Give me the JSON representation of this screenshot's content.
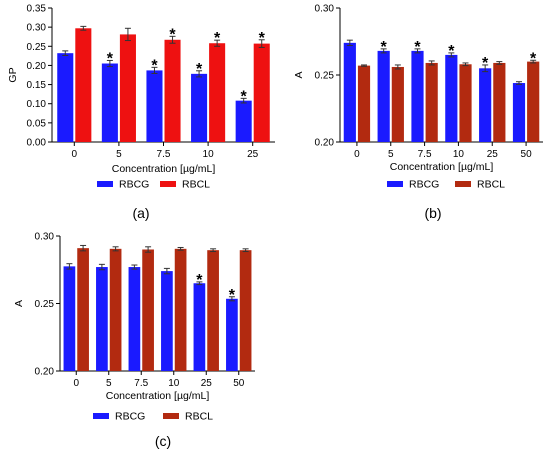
{
  "figure": {
    "panel_labels": [
      "(a)",
      "(b)",
      "(c)"
    ]
  },
  "chart_data": [
    {
      "type": "bar",
      "panel": "(a)",
      "categories": [
        "0",
        "5",
        "7.5",
        "10",
        "25"
      ],
      "series": [
        {
          "name": "RBCG",
          "color": "#1a1aff",
          "values": [
            0.232,
            0.205,
            0.187,
            0.178,
            0.108
          ],
          "errors": [
            0.006,
            0.008,
            0.008,
            0.008,
            0.006
          ],
          "significant": [
            false,
            true,
            true,
            true,
            true
          ]
        },
        {
          "name": "RBCL",
          "color": "#ee1111",
          "values": [
            0.297,
            0.281,
            0.267,
            0.258,
            0.257
          ],
          "errors": [
            0.005,
            0.016,
            0.009,
            0.008,
            0.01
          ],
          "significant": [
            false,
            false,
            true,
            true,
            true
          ]
        }
      ],
      "xlabel": "Concentration [µg/mL]",
      "ylabel": "GP",
      "ylim": [
        0,
        0.35
      ],
      "yticks": [
        "0.00",
        "0.05",
        "0.10",
        "0.15",
        "0.20",
        "0.25",
        "0.30",
        "0.35"
      ],
      "legend_position": "bottom",
      "significance_marker": "*"
    },
    {
      "type": "bar",
      "panel": "(b)",
      "categories": [
        "0",
        "5",
        "7.5",
        "10",
        "25",
        "50"
      ],
      "series": [
        {
          "name": "RBCG",
          "color": "#1a1aff",
          "values": [
            0.274,
            0.268,
            0.268,
            0.265,
            0.255,
            0.244
          ],
          "errors": [
            0.002,
            0.0015,
            0.0015,
            0.0015,
            0.0025,
            0.001
          ],
          "significant": [
            false,
            true,
            true,
            true,
            true,
            false
          ]
        },
        {
          "name": "RBCL",
          "color": "#b22a10",
          "values": [
            0.257,
            0.256,
            0.259,
            0.258,
            0.259,
            0.26
          ],
          "errors": [
            0.0005,
            0.0015,
            0.0015,
            0.001,
            0.001,
            0.001
          ],
          "significant": [
            false,
            false,
            false,
            false,
            false,
            true
          ]
        }
      ],
      "xlabel": "Concentration [µg/mL]",
      "ylabel": "A",
      "ylim": [
        0.2,
        0.3
      ],
      "yticks": [
        "0.20",
        "0.25",
        "0.30"
      ],
      "legend_position": "bottom",
      "significance_marker": "*"
    },
    {
      "type": "bar",
      "panel": "(c)",
      "categories": [
        "0",
        "5",
        "7.5",
        "10",
        "25",
        "50"
      ],
      "series": [
        {
          "name": "RBCG",
          "color": "#1a1aff",
          "values": [
            0.2775,
            0.277,
            0.277,
            0.274,
            0.265,
            0.2535
          ],
          "errors": [
            0.002,
            0.002,
            0.0015,
            0.002,
            0.001,
            0.0015
          ],
          "significant": [
            false,
            false,
            false,
            false,
            true,
            true
          ]
        },
        {
          "name": "RBCL",
          "color": "#b22a10",
          "values": [
            0.291,
            0.2905,
            0.29,
            0.2905,
            0.2895,
            0.2895
          ],
          "errors": [
            0.002,
            0.0015,
            0.002,
            0.001,
            0.001,
            0.001
          ],
          "significant": [
            false,
            false,
            false,
            false,
            false,
            false
          ]
        }
      ],
      "xlabel": "Concentration [µg/mL]",
      "ylabel": "A",
      "ylim": [
        0.2,
        0.3
      ],
      "yticks": [
        "0.20",
        "0.25",
        "0.30"
      ],
      "legend_position": "bottom",
      "significance_marker": "*"
    }
  ]
}
